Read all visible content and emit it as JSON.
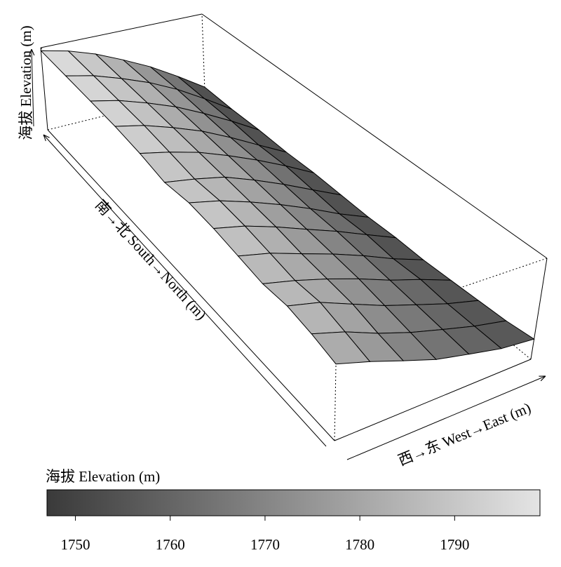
{
  "chart_data": {
    "type": "surface",
    "z_label": "海拔 Elevation (m)",
    "y_label": "南→北 South→North (m)",
    "x_label": "西→东 West→East (m)",
    "colorbar_title": "海拔 Elevation (m)",
    "zlim": [
      1745,
      1800
    ],
    "clim": [
      1747,
      1799
    ],
    "cticks": [
      1750,
      1760,
      1770,
      1780,
      1790
    ],
    "colors": [
      "#3a3a3a",
      "#e4e4e4"
    ],
    "z": [
      [
        1783,
        1778,
        1772,
        1766,
        1762,
        1758,
        1756
      ],
      [
        1786,
        1781,
        1774,
        1768,
        1763,
        1758,
        1754
      ],
      [
        1788,
        1784,
        1777,
        1770,
        1764,
        1758,
        1753
      ],
      [
        1787,
        1783,
        1778,
        1772,
        1765,
        1759,
        1752
      ],
      [
        1789,
        1785,
        1779,
        1773,
        1766,
        1758,
        1751
      ],
      [
        1791,
        1787,
        1781,
        1774,
        1767,
        1759,
        1751
      ],
      [
        1792,
        1788,
        1782,
        1775,
        1767,
        1758,
        1750
      ],
      [
        1790,
        1787,
        1783,
        1776,
        1768,
        1759,
        1750
      ],
      [
        1793,
        1789,
        1784,
        1777,
        1769,
        1760,
        1750
      ],
      [
        1795,
        1791,
        1785,
        1778,
        1769,
        1759,
        1749
      ],
      [
        1796,
        1792,
        1786,
        1779,
        1770,
        1760,
        1749
      ],
      [
        1797,
        1793,
        1787,
        1780,
        1771,
        1760,
        1748
      ],
      [
        1798,
        1794,
        1788,
        1780,
        1771,
        1760,
        1748
      ]
    ]
  }
}
